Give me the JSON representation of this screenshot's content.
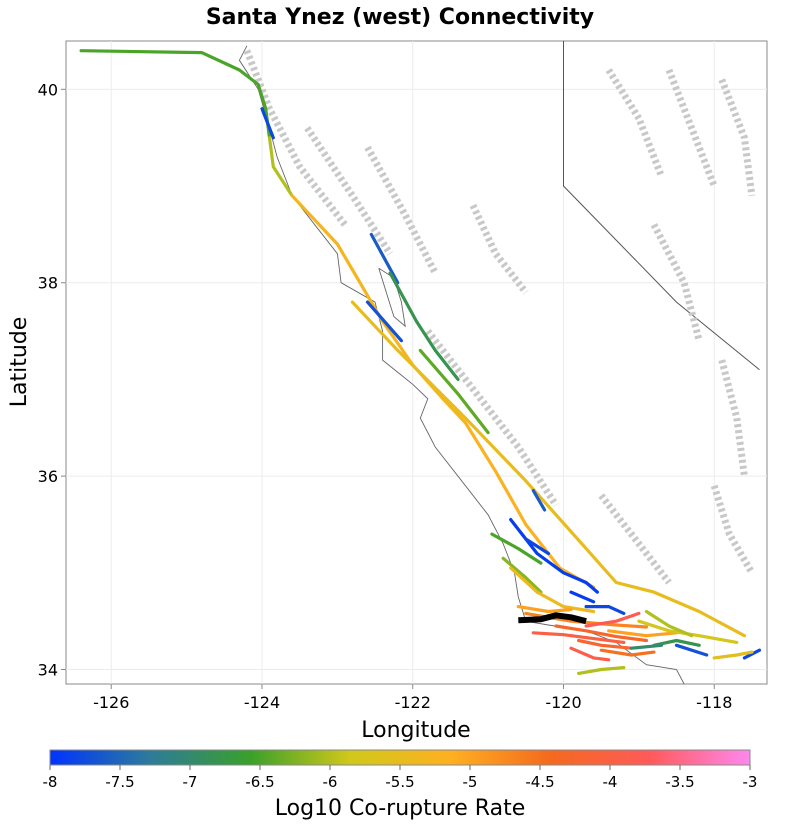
{
  "chart_data": {
    "type": "map",
    "title": "Santa Ynez (west) Connectivity",
    "xlabel": "Longitude",
    "ylabel": "Latitude",
    "xlim": [
      -126.6,
      -117.3
    ],
    "ylim": [
      33.85,
      40.5
    ],
    "xticks": [
      -126,
      -124,
      -122,
      -120,
      -118
    ],
    "yticks": [
      34,
      36,
      38,
      40
    ],
    "grid": true,
    "colorbar": {
      "label": "Log10 Co-rupture Rate",
      "range": [
        -8,
        -3
      ],
      "ticks": [
        "-8",
        "-7.5",
        "-7",
        "-6.5",
        "-6",
        "-5.5",
        "-5",
        "-4.5",
        "-4",
        "-3.5",
        "-3"
      ],
      "stops": [
        "#0033ff",
        "#2e7b9a",
        "#3aa02a",
        "#d0c81a",
        "#ffb020",
        "#f46a1e",
        "#ff5a5a",
        "#ff88ee"
      ]
    },
    "source_fault": {
      "name": "Santa Ynez (west)",
      "color": "#000000",
      "path": [
        [
          -120.6,
          34.51
        ],
        [
          -120.3,
          34.52
        ],
        [
          -120.1,
          34.56
        ],
        [
          -119.9,
          34.54
        ],
        [
          -119.7,
          34.5
        ]
      ]
    },
    "faults": [
      {
        "value": -6.5,
        "path": [
          [
            -126.4,
            40.4
          ],
          [
            -124.8,
            40.38
          ],
          [
            -124.3,
            40.2
          ],
          [
            -124.05,
            40.05
          ],
          [
            -123.95,
            39.8
          ],
          [
            -123.9,
            39.5
          ]
        ]
      },
      {
        "value": -6.0,
        "path": [
          [
            -123.9,
            39.5
          ],
          [
            -123.85,
            39.2
          ],
          [
            -123.6,
            38.9
          ]
        ]
      },
      {
        "value": -5.3,
        "path": [
          [
            -123.6,
            38.9
          ],
          [
            -123.0,
            38.4
          ],
          [
            -122.7,
            38.0
          ],
          [
            -122.4,
            37.6
          ],
          [
            -122.0,
            37.15
          ],
          [
            -121.6,
            36.8
          ],
          [
            -121.3,
            36.55
          ]
        ]
      },
      {
        "value": -5.2,
        "path": [
          [
            -121.3,
            36.55
          ],
          [
            -120.9,
            36.05
          ],
          [
            -120.5,
            35.5
          ],
          [
            -120.05,
            35.05
          ],
          [
            -119.6,
            34.85
          ]
        ]
      },
      {
        "value": -5.5,
        "path": [
          [
            -122.8,
            37.8
          ],
          [
            -122.2,
            37.3
          ],
          [
            -121.3,
            36.6
          ],
          [
            -120.5,
            35.95
          ],
          [
            -119.7,
            35.25
          ],
          [
            -119.3,
            34.9
          ],
          [
            -118.8,
            34.8
          ],
          [
            -118.2,
            34.6
          ],
          [
            -117.6,
            34.35
          ]
        ]
      },
      {
        "value": -7.8,
        "path": [
          [
            -124.0,
            39.8
          ],
          [
            -123.85,
            39.5
          ]
        ]
      },
      {
        "value": -7.6,
        "path": [
          [
            -122.55,
            38.5
          ],
          [
            -122.2,
            38.0
          ]
        ]
      },
      {
        "value": -6.8,
        "path": [
          [
            -122.3,
            38.1
          ],
          [
            -121.95,
            37.6
          ],
          [
            -121.7,
            37.3
          ],
          [
            -121.4,
            37.0
          ]
        ]
      },
      {
        "value": -6.4,
        "path": [
          [
            -121.9,
            37.3
          ],
          [
            -121.4,
            36.85
          ],
          [
            -121.0,
            36.45
          ]
        ]
      },
      {
        "value": -7.7,
        "path": [
          [
            -122.6,
            37.8
          ],
          [
            -122.15,
            37.4
          ]
        ]
      },
      {
        "value": -7.9,
        "path": [
          [
            -120.7,
            35.55
          ],
          [
            -120.35,
            35.2
          ],
          [
            -120.0,
            35.0
          ],
          [
            -119.7,
            34.9
          ],
          [
            -119.55,
            34.8
          ]
        ]
      },
      {
        "value": -7.8,
        "path": [
          [
            -120.5,
            35.35
          ],
          [
            -120.2,
            35.2
          ]
        ]
      },
      {
        "value": -7.9,
        "path": [
          [
            -119.9,
            34.8
          ],
          [
            -119.6,
            34.7
          ]
        ]
      },
      {
        "value": -7.8,
        "path": [
          [
            -119.7,
            34.65
          ],
          [
            -119.4,
            34.65
          ],
          [
            -119.2,
            34.58
          ]
        ]
      },
      {
        "value": -7.6,
        "path": [
          [
            -120.4,
            35.85
          ],
          [
            -120.25,
            35.65
          ]
        ]
      },
      {
        "value": -6.5,
        "path": [
          [
            -120.95,
            35.4
          ],
          [
            -120.6,
            35.25
          ],
          [
            -120.3,
            35.1
          ]
        ]
      },
      {
        "value": -6.2,
        "path": [
          [
            -120.8,
            35.15
          ],
          [
            -120.5,
            34.95
          ],
          [
            -120.3,
            34.8
          ]
        ]
      },
      {
        "value": -5.4,
        "path": [
          [
            -120.7,
            35.05
          ],
          [
            -120.35,
            34.8
          ],
          [
            -120.0,
            34.65
          ],
          [
            -119.6,
            34.6
          ]
        ]
      },
      {
        "value": -5.0,
        "path": [
          [
            -120.6,
            34.65
          ],
          [
            -120.2,
            34.6
          ],
          [
            -119.9,
            34.62
          ]
        ]
      },
      {
        "value": -4.7,
        "path": [
          [
            -120.5,
            34.58
          ],
          [
            -119.9,
            34.5
          ],
          [
            -119.3,
            34.46
          ],
          [
            -118.9,
            34.44
          ]
        ]
      },
      {
        "value": -4.3,
        "path": [
          [
            -120.1,
            34.45
          ],
          [
            -119.7,
            34.4
          ],
          [
            -119.3,
            34.34
          ],
          [
            -118.9,
            34.3
          ]
        ]
      },
      {
        "value": -4.0,
        "path": [
          [
            -120.4,
            34.38
          ],
          [
            -120.0,
            34.36
          ],
          [
            -119.6,
            34.32
          ],
          [
            -119.2,
            34.28
          ]
        ]
      },
      {
        "value": -3.8,
        "path": [
          [
            -119.7,
            34.45
          ],
          [
            -119.3,
            34.5
          ],
          [
            -119.0,
            34.58
          ]
        ]
      },
      {
        "value": -4.2,
        "path": [
          [
            -119.8,
            34.3
          ],
          [
            -119.5,
            34.25
          ],
          [
            -119.1,
            34.22
          ]
        ]
      },
      {
        "value": -4.5,
        "path": [
          [
            -119.5,
            34.2
          ],
          [
            -119.1,
            34.15
          ],
          [
            -118.8,
            34.18
          ]
        ]
      },
      {
        "value": -3.9,
        "path": [
          [
            -119.9,
            34.22
          ],
          [
            -119.6,
            34.12
          ],
          [
            -119.4,
            34.1
          ]
        ]
      },
      {
        "value": -5.0,
        "path": [
          [
            -119.4,
            34.4
          ],
          [
            -118.9,
            34.35
          ],
          [
            -118.5,
            34.38
          ]
        ]
      },
      {
        "value": -5.8,
        "path": [
          [
            -119.0,
            34.5
          ],
          [
            -118.6,
            34.4
          ],
          [
            -118.2,
            34.35
          ],
          [
            -117.7,
            34.28
          ]
        ]
      },
      {
        "value": -6.0,
        "path": [
          [
            -118.9,
            34.6
          ],
          [
            -118.6,
            34.45
          ],
          [
            -118.3,
            34.35
          ]
        ]
      },
      {
        "value": -6.8,
        "path": [
          [
            -118.8,
            34.25
          ],
          [
            -118.5,
            34.3
          ],
          [
            -118.2,
            34.25
          ]
        ]
      },
      {
        "value": -7.0,
        "path": [
          [
            -119.1,
            34.22
          ],
          [
            -118.7,
            34.25
          ]
        ]
      },
      {
        "value": -7.7,
        "path": [
          [
            -118.5,
            34.25
          ],
          [
            -118.1,
            34.15
          ]
        ]
      },
      {
        "value": -7.8,
        "path": [
          [
            -117.6,
            34.12
          ],
          [
            -117.4,
            34.2
          ]
        ]
      },
      {
        "value": -6.0,
        "path": [
          [
            -119.8,
            33.96
          ],
          [
            -119.5,
            34.0
          ],
          [
            -119.2,
            34.02
          ]
        ]
      },
      {
        "value": -5.6,
        "path": [
          [
            -118.0,
            34.12
          ],
          [
            -117.7,
            34.15
          ],
          [
            -117.5,
            34.18
          ]
        ]
      }
    ]
  }
}
